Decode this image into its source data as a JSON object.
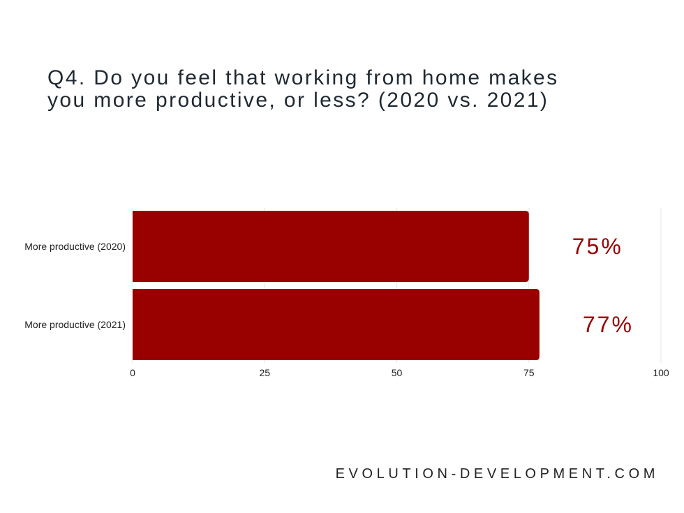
{
  "chart_data": {
    "type": "bar",
    "orientation": "horizontal",
    "title_lines": [
      "Q4. Do you feel that working from home makes",
      "you more productive, or less? (2020 vs. 2021)"
    ],
    "categories": [
      "More productive (2020)",
      "More productive (2021)"
    ],
    "values": [
      75,
      77
    ],
    "value_labels": [
      "75%",
      "77%"
    ],
    "xticks": [
      "0",
      "25",
      "50",
      "75",
      "100"
    ],
    "xlim": [
      0,
      100
    ],
    "grid": true,
    "bar_color": "#990000",
    "value_label_color": "#990000"
  },
  "footer": "EVOLUTION-DEVELOPMENT.COM"
}
